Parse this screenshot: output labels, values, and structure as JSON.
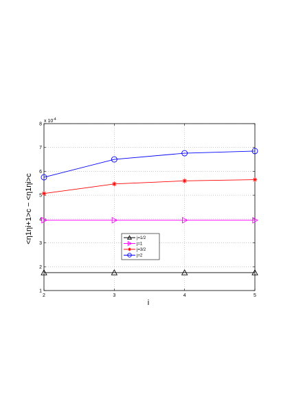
{
  "chart_data": {
    "type": "line",
    "x": [
      2,
      3,
      4,
      5
    ],
    "xlim": [
      2,
      5
    ],
    "ylim": [
      1,
      8
    ],
    "y_multiplier_label": "x 10",
    "y_multiplier_exponent": "-4",
    "xticks": [
      "2",
      "3",
      "4",
      "5"
    ],
    "yticks": [
      "1",
      "2",
      "3",
      "4",
      "5",
      "6",
      "7",
      "8"
    ],
    "xlabel": "i",
    "ylabel": "<η1ηi+1>c − <η1ηi>c",
    "grid": true,
    "legend_position": "center-bottom",
    "series": [
      {
        "name": "j=1/2",
        "color": "#000000",
        "marker": "triangle-up",
        "values": [
          1.75,
          1.75,
          1.75,
          1.75
        ]
      },
      {
        "name": "j=1",
        "color": "#ff00ff",
        "marker": "triangle-right",
        "values": [
          3.95,
          3.95,
          3.95,
          3.95
        ]
      },
      {
        "name": "j=3/2",
        "color": "#ff0000",
        "marker": "star",
        "values": [
          5.07,
          5.47,
          5.6,
          5.65
        ]
      },
      {
        "name": "j=2",
        "color": "#0000ff",
        "marker": "circle",
        "values": [
          5.75,
          6.5,
          6.76,
          6.85
        ]
      }
    ]
  }
}
